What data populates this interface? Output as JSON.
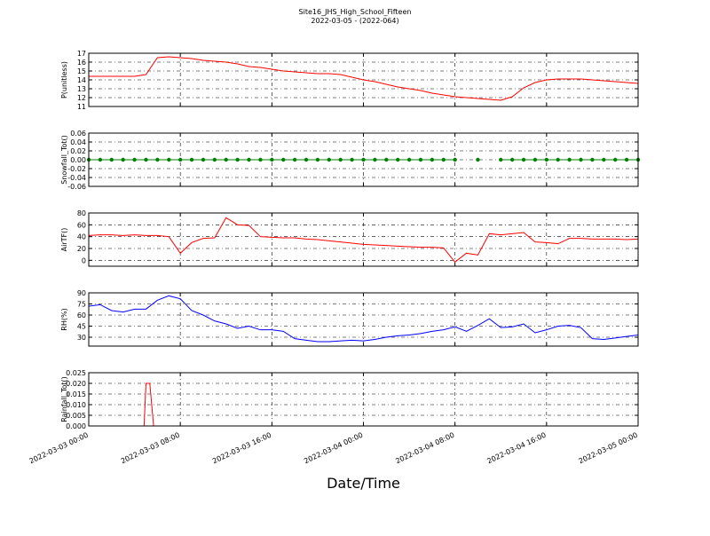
{
  "title": "Site16_JHS_High_School_Fifteen",
  "subtitle": "2022-03-05 - (2022-064)",
  "chart_data": [
    {
      "type": "line",
      "ylabel": "P(unitless)",
      "color": "#ff0000",
      "grid": true,
      "xlim": [
        "2022-03-03 00:00",
        "2022-03-05 00:00"
      ],
      "ylim": [
        11,
        17
      ],
      "yticks": [
        11,
        12,
        13,
        14,
        15,
        16,
        17
      ],
      "x": [
        "2022-03-03 00:00",
        "2022-03-03 01:00",
        "2022-03-03 02:00",
        "2022-03-03 03:00",
        "2022-03-03 04:00",
        "2022-03-03 05:00",
        "2022-03-03 06:00",
        "2022-03-03 07:00",
        "2022-03-03 08:00",
        "2022-03-03 09:00",
        "2022-03-03 10:00",
        "2022-03-03 11:00",
        "2022-03-03 12:00",
        "2022-03-03 13:00",
        "2022-03-03 14:00",
        "2022-03-03 15:00",
        "2022-03-03 16:00",
        "2022-03-03 17:00",
        "2022-03-03 18:00",
        "2022-03-03 19:00",
        "2022-03-03 20:00",
        "2022-03-03 21:00",
        "2022-03-03 22:00",
        "2022-03-03 23:00",
        "2022-03-04 00:00",
        "2022-03-04 01:00",
        "2022-03-04 02:00",
        "2022-03-04 03:00",
        "2022-03-04 04:00",
        "2022-03-04 05:00",
        "2022-03-04 06:00",
        "2022-03-04 07:00",
        "2022-03-04 08:00",
        "2022-03-04 09:00",
        "2022-03-04 10:00",
        "2022-03-04 11:00",
        "2022-03-04 12:00",
        "2022-03-04 13:00",
        "2022-03-04 14:00",
        "2022-03-04 15:00",
        "2022-03-04 16:00",
        "2022-03-04 17:00",
        "2022-03-04 18:00",
        "2022-03-04 19:00",
        "2022-03-04 20:00",
        "2022-03-04 21:00",
        "2022-03-04 22:00",
        "2022-03-04 23:00",
        "2022-03-05 00:00"
      ],
      "values": [
        14.4,
        14.4,
        14.4,
        14.4,
        14.4,
        14.6,
        16.5,
        16.6,
        16.5,
        16.4,
        16.2,
        16.1,
        16.0,
        15.8,
        15.5,
        15.4,
        15.2,
        15.0,
        14.9,
        14.8,
        14.7,
        14.7,
        14.6,
        14.3,
        14.0,
        13.8,
        13.5,
        13.2,
        13.0,
        12.8,
        12.5,
        12.3,
        12.1,
        12.0,
        11.9,
        11.8,
        11.7,
        12.1,
        13.1,
        13.7,
        14.0,
        14.1,
        14.1,
        14.1,
        14.0,
        13.9,
        13.8,
        13.7,
        13.6
      ]
    },
    {
      "type": "line",
      "markers": true,
      "ylabel": "Snowfall_Tot()",
      "color": "#008000",
      "grid": true,
      "xlim": [
        "2022-03-03 00:00",
        "2022-03-05 00:00"
      ],
      "ylim": [
        -0.06,
        0.06
      ],
      "yticks": [
        {
          "value": -0.06,
          "label": "-0.06"
        },
        {
          "value": -0.04,
          "label": "-0.04"
        },
        {
          "value": -0.02,
          "label": "-0.02"
        },
        {
          "value": 0,
          "label": "0.00"
        },
        {
          "value": 0.02,
          "label": "0.02"
        },
        {
          "value": 0.04,
          "label": "0.04"
        },
        {
          "value": 0.06,
          "label": "0.06"
        }
      ],
      "x": [
        "2022-03-03 00:00",
        "2022-03-03 01:00",
        "2022-03-03 02:00",
        "2022-03-03 03:00",
        "2022-03-03 04:00",
        "2022-03-03 05:00",
        "2022-03-03 06:00",
        "2022-03-03 07:00",
        "2022-03-03 08:00",
        "2022-03-03 09:00",
        "2022-03-03 10:00",
        "2022-03-03 11:00",
        "2022-03-03 12:00",
        "2022-03-03 13:00",
        "2022-03-03 14:00",
        "2022-03-03 15:00",
        "2022-03-03 16:00",
        "2022-03-03 17:00",
        "2022-03-03 18:00",
        "2022-03-03 19:00",
        "2022-03-03 20:00",
        "2022-03-03 21:00",
        "2022-03-03 22:00",
        "2022-03-03 23:00",
        "2022-03-04 00:00",
        "2022-03-04 01:00",
        "2022-03-04 02:00",
        "2022-03-04 03:00",
        "2022-03-04 04:00",
        "2022-03-04 05:00",
        "2022-03-04 06:00",
        "2022-03-04 07:00",
        "2022-03-04 08:00",
        "2022-03-04 09:00",
        "2022-03-04 10:00",
        "2022-03-04 11:00",
        "2022-03-04 12:00",
        "2022-03-04 13:00",
        "2022-03-04 14:00",
        "2022-03-04 15:00",
        "2022-03-04 16:00",
        "2022-03-04 17:00",
        "2022-03-04 18:00",
        "2022-03-04 19:00",
        "2022-03-04 20:00",
        "2022-03-04 21:00",
        "2022-03-04 22:00",
        "2022-03-04 23:00",
        "2022-03-05 00:00"
      ],
      "values": [
        0,
        0,
        0,
        0,
        0,
        0,
        0,
        0,
        0,
        0,
        0,
        0,
        0,
        0,
        0,
        0,
        0,
        0,
        0,
        0,
        0,
        0,
        0,
        0,
        0,
        0,
        0,
        0,
        0,
        0,
        0,
        0,
        0,
        null,
        0,
        null,
        0,
        0,
        0,
        0,
        0,
        0,
        0,
        0,
        0,
        0,
        0,
        0,
        0
      ]
    },
    {
      "type": "line",
      "ylabel": "AirTF()",
      "color": "#ff0000",
      "grid": true,
      "xlim": [
        "2022-03-03 00:00",
        "2022-03-05 00:00"
      ],
      "ylim": [
        -10,
        80
      ],
      "yticks": [
        0,
        20,
        40,
        60,
        80
      ],
      "x": [
        "2022-03-03 00:00",
        "2022-03-03 01:00",
        "2022-03-03 02:00",
        "2022-03-03 03:00",
        "2022-03-03 04:00",
        "2022-03-03 05:00",
        "2022-03-03 06:00",
        "2022-03-03 07:00",
        "2022-03-03 08:00",
        "2022-03-03 09:00",
        "2022-03-03 10:00",
        "2022-03-03 11:00",
        "2022-03-03 12:00",
        "2022-03-03 13:00",
        "2022-03-03 14:00",
        "2022-03-03 15:00",
        "2022-03-03 16:00",
        "2022-03-03 17:00",
        "2022-03-03 18:00",
        "2022-03-03 19:00",
        "2022-03-03 20:00",
        "2022-03-03 21:00",
        "2022-03-03 22:00",
        "2022-03-03 23:00",
        "2022-03-04 00:00",
        "2022-03-04 01:00",
        "2022-03-04 02:00",
        "2022-03-04 03:00",
        "2022-03-04 04:00",
        "2022-03-04 05:00",
        "2022-03-04 06:00",
        "2022-03-04 07:00",
        "2022-03-04 08:00",
        "2022-03-04 09:00",
        "2022-03-04 10:00",
        "2022-03-04 11:00",
        "2022-03-04 12:00",
        "2022-03-04 13:00",
        "2022-03-04 14:00",
        "2022-03-04 15:00",
        "2022-03-04 16:00",
        "2022-03-04 17:00",
        "2022-03-04 18:00",
        "2022-03-04 19:00",
        "2022-03-04 20:00",
        "2022-03-04 21:00",
        "2022-03-04 22:00",
        "2022-03-04 23:00",
        "2022-03-05 00:00"
      ],
      "values": [
        42,
        43,
        43,
        42,
        43,
        42,
        42,
        40,
        12,
        30,
        37,
        38,
        72,
        60,
        59,
        40,
        39,
        38,
        38,
        36,
        35,
        33,
        31,
        29,
        27,
        26,
        25,
        24,
        23,
        22,
        22,
        21,
        -3,
        12,
        9,
        45,
        43,
        45,
        47,
        31,
        30,
        28,
        37,
        37,
        36,
        36,
        36,
        35,
        36
      ]
    },
    {
      "type": "line",
      "ylabel": "RH(%)",
      "color": "#0000ff",
      "grid": true,
      "xlim": [
        "2022-03-03 00:00",
        "2022-03-05 00:00"
      ],
      "ylim": [
        18,
        90
      ],
      "yticks": [
        30,
        45,
        60,
        75,
        90
      ],
      "x": [
        "2022-03-03 00:00",
        "2022-03-03 01:00",
        "2022-03-03 02:00",
        "2022-03-03 03:00",
        "2022-03-03 04:00",
        "2022-03-03 05:00",
        "2022-03-03 06:00",
        "2022-03-03 07:00",
        "2022-03-03 08:00",
        "2022-03-03 09:00",
        "2022-03-03 10:00",
        "2022-03-03 11:00",
        "2022-03-03 12:00",
        "2022-03-03 13:00",
        "2022-03-03 14:00",
        "2022-03-03 15:00",
        "2022-03-03 16:00",
        "2022-03-03 17:00",
        "2022-03-03 18:00",
        "2022-03-03 19:00",
        "2022-03-03 20:00",
        "2022-03-03 21:00",
        "2022-03-03 22:00",
        "2022-03-03 23:00",
        "2022-03-04 00:00",
        "2022-03-04 01:00",
        "2022-03-04 02:00",
        "2022-03-04 03:00",
        "2022-03-04 04:00",
        "2022-03-04 05:00",
        "2022-03-04 06:00",
        "2022-03-04 07:00",
        "2022-03-04 08:00",
        "2022-03-04 09:00",
        "2022-03-04 10:00",
        "2022-03-04 11:00",
        "2022-03-04 12:00",
        "2022-03-04 13:00",
        "2022-03-04 14:00",
        "2022-03-04 15:00",
        "2022-03-04 16:00",
        "2022-03-04 17:00",
        "2022-03-04 18:00",
        "2022-03-04 19:00",
        "2022-03-04 20:00",
        "2022-03-04 21:00",
        "2022-03-04 22:00",
        "2022-03-04 23:00",
        "2022-03-05 00:00"
      ],
      "values": [
        72,
        74,
        66,
        64,
        68,
        68,
        80,
        86,
        82,
        66,
        60,
        52,
        48,
        42,
        45,
        40,
        40,
        38,
        28,
        26,
        24,
        24,
        25,
        26,
        25,
        27,
        30,
        32,
        33,
        35,
        38,
        40,
        44,
        38,
        46,
        55,
        43,
        44,
        48,
        36,
        40,
        45,
        46,
        43,
        28,
        27,
        29,
        31,
        33
      ]
    },
    {
      "type": "line",
      "ylabel": "Rainfall_Tot()",
      "xlabel": "Date/Time",
      "color": "#ff0000",
      "grid": true,
      "xlim": [
        "2022-03-03 00:00",
        "2022-03-05 00:00"
      ],
      "xticks": [
        "2022-03-03 00:00",
        "2022-03-03 08:00",
        "2022-03-03 16:00",
        "2022-03-04 00:00",
        "2022-03-04 08:00",
        "2022-03-04 16:00",
        "2022-03-05 00:00"
      ],
      "ylim": [
        0,
        0.025
      ],
      "yticks": [
        {
          "value": 0,
          "label": "0.000"
        },
        {
          "value": 0.005,
          "label": "0.005"
        },
        {
          "value": 0.01,
          "label": "0.010"
        },
        {
          "value": 0.015,
          "label": "0.015"
        },
        {
          "value": 0.02,
          "label": "0.020"
        },
        {
          "value": 0.025,
          "label": "0.025"
        }
      ],
      "x": [
        "2022-03-03 00:00",
        "2022-03-03 04:50",
        "2022-03-03 05:00",
        "2022-03-03 05:20",
        "2022-03-03 05:40",
        "2022-03-05 00:00"
      ],
      "values": [
        0,
        0,
        0.02,
        0.02,
        0,
        0
      ]
    }
  ]
}
